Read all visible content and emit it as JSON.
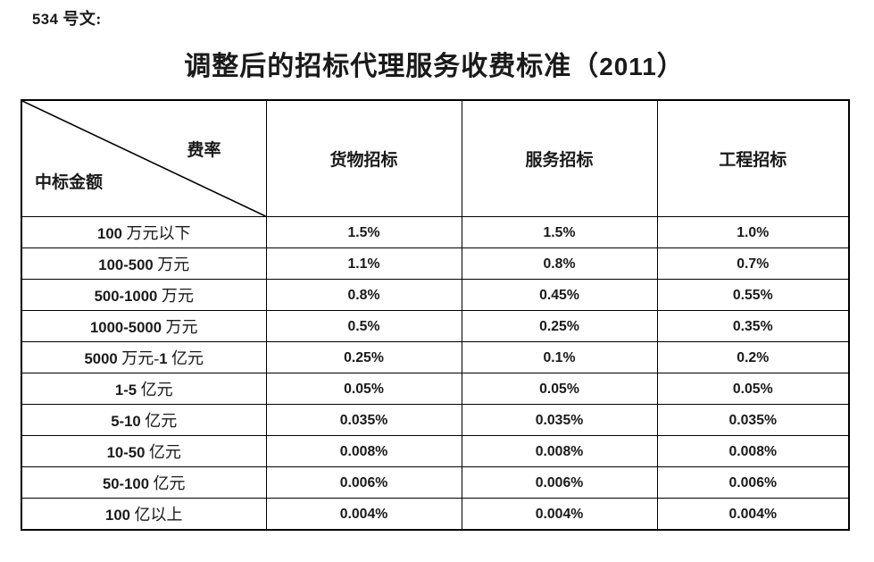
{
  "page": {
    "doc_label": "534 号文:",
    "title": "调整后的招标代理服务收费标准（2011）"
  },
  "table": {
    "corner": {
      "top_right": "费率",
      "bottom_left": "中标金额"
    },
    "columns": [
      "货物招标",
      "服务招标",
      "工程招标"
    ],
    "rows": [
      {
        "label": "100 万元以下",
        "values": [
          "1.5%",
          "1.5%",
          "1.0%"
        ]
      },
      {
        "label": "100-500 万元",
        "values": [
          "1.1%",
          "0.8%",
          "0.7%"
        ]
      },
      {
        "label": "500-1000 万元",
        "values": [
          "0.8%",
          "0.45%",
          "0.55%"
        ]
      },
      {
        "label": "1000-5000 万元",
        "values": [
          "0.5%",
          "0.25%",
          "0.35%"
        ]
      },
      {
        "label": "5000 万元-1 亿元",
        "values": [
          "0.25%",
          "0.1%",
          "0.2%"
        ]
      },
      {
        "label": "1-5 亿元",
        "values": [
          "0.05%",
          "0.05%",
          "0.05%"
        ]
      },
      {
        "label": "5-10 亿元",
        "values": [
          "0.035%",
          "0.035%",
          "0.035%"
        ]
      },
      {
        "label": "10-50 亿元",
        "values": [
          "0.008%",
          "0.008%",
          "0.008%"
        ]
      },
      {
        "label": "50-100 亿元",
        "values": [
          "0.006%",
          "0.006%",
          "0.006%"
        ]
      },
      {
        "label": "100 亿以上",
        "values": [
          "0.004%",
          "0.004%",
          "0.004%"
        ]
      }
    ],
    "colors": {
      "text": "#1a1a1a",
      "border": "#000000",
      "background": "#ffffff"
    }
  }
}
